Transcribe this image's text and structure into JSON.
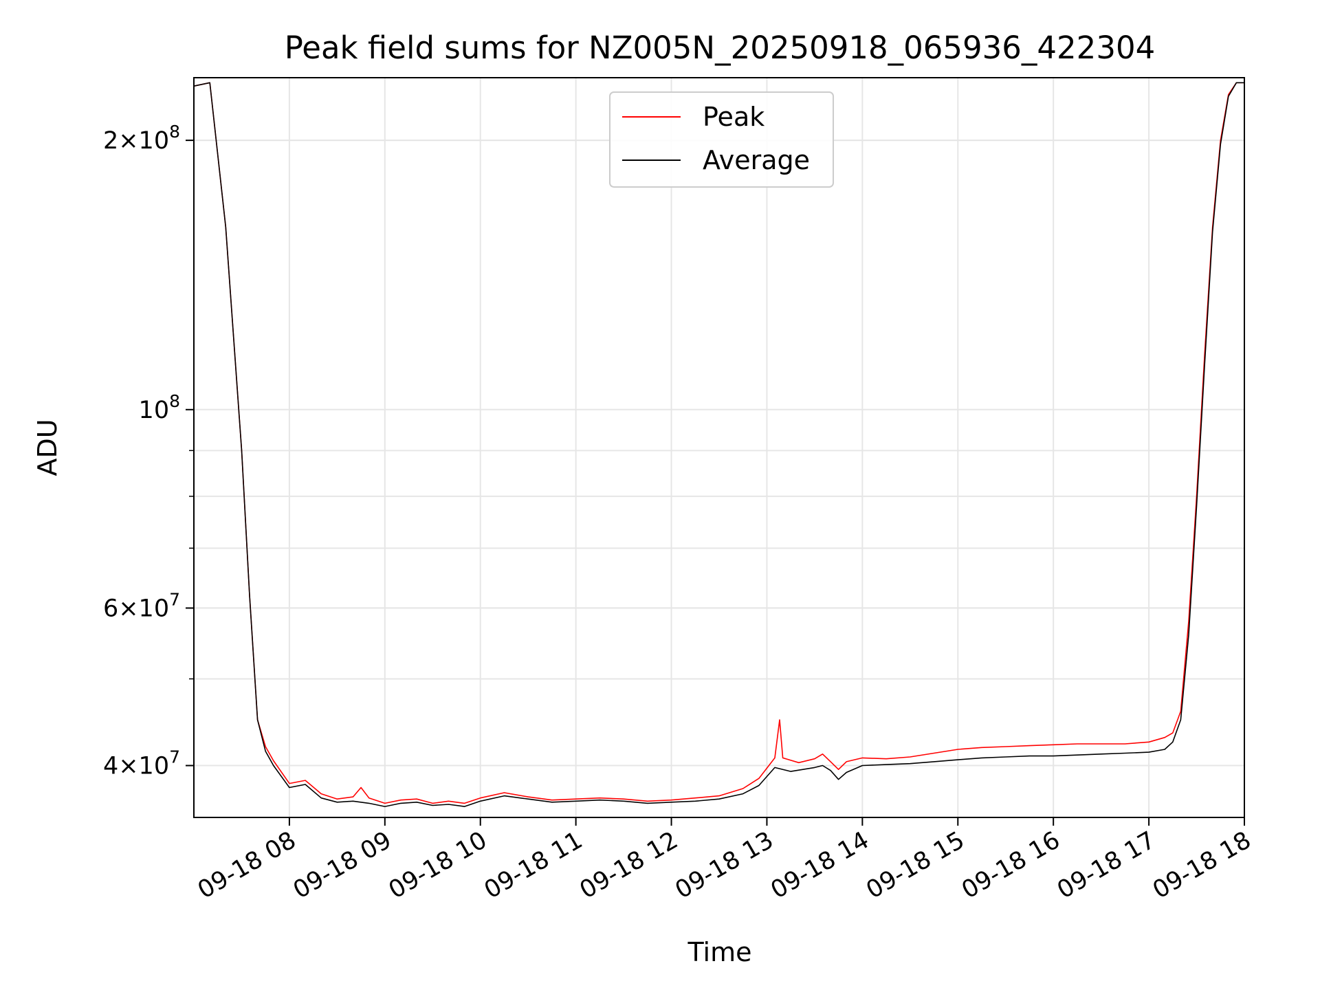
{
  "chart_data": {
    "type": "line",
    "title": "Peak field sums for NZ005N_20250918_065936_422304",
    "xlabel": "Time",
    "ylabel": "ADU",
    "y_scale": "log",
    "ylim": [
      35000000,
      235000000
    ],
    "xlim": [
      "2025-09-18 07:00",
      "2025-09-18 18:00"
    ],
    "grid": true,
    "legend_placement": "top-center",
    "x_tick_labels": [
      "09-18 08",
      "09-18 09",
      "09-18 10",
      "09-18 11",
      "09-18 12",
      "09-18 13",
      "09-18 14",
      "09-18 15",
      "09-18 16",
      "09-18 17",
      "09-18 18"
    ],
    "x_ticks": [
      "2025-09-18 08:00",
      "2025-09-18 09:00",
      "2025-09-18 10:00",
      "2025-09-18 11:00",
      "2025-09-18 12:00",
      "2025-09-18 13:00",
      "2025-09-18 14:00",
      "2025-09-18 15:00",
      "2025-09-18 16:00",
      "2025-09-18 17:00",
      "2025-09-18 18:00"
    ],
    "y_ticks": [
      {
        "value": 200000000,
        "mantissa": "2",
        "exponent": "8"
      },
      {
        "value": 100000000,
        "mantissa": "",
        "exponent": "8"
      },
      {
        "value": 60000000,
        "mantissa": "6",
        "exponent": "7"
      },
      {
        "value": 40000000,
        "mantissa": "4",
        "exponent": "7"
      }
    ],
    "series": [
      {
        "name": "Peak",
        "color": "#ff0000",
        "x": [
          "07:00",
          "07:10",
          "07:20",
          "07:30",
          "07:35",
          "07:40",
          "07:45",
          "07:50",
          "08:00",
          "08:10",
          "08:20",
          "08:30",
          "08:40",
          "08:45",
          "08:50",
          "09:00",
          "09:10",
          "09:20",
          "09:30",
          "09:40",
          "09:50",
          "10:00",
          "10:15",
          "10:30",
          "10:45",
          "11:00",
          "11:15",
          "11:30",
          "11:45",
          "12:00",
          "12:15",
          "12:30",
          "12:45",
          "12:55",
          "13:05",
          "13:08",
          "13:10",
          "13:20",
          "13:30",
          "13:35",
          "13:40",
          "13:45",
          "13:50",
          "14:00",
          "14:15",
          "14:30",
          "14:45",
          "15:00",
          "15:15",
          "15:30",
          "15:45",
          "16:00",
          "16:15",
          "16:30",
          "16:45",
          "17:00",
          "17:10",
          "17:15",
          "17:20",
          "17:25",
          "17:30",
          "17:35",
          "17:40",
          "17:45",
          "17:50",
          "17:55",
          "18:00"
        ],
        "y": [
          230000000,
          232000000,
          160000000,
          90000000,
          62000000,
          45000000,
          42000000,
          40500000,
          38200000,
          38500000,
          37200000,
          36700000,
          36900000,
          37800000,
          36800000,
          36300000,
          36600000,
          36700000,
          36300000,
          36500000,
          36300000,
          36800000,
          37300000,
          36900000,
          36600000,
          36700000,
          36800000,
          36700000,
          36500000,
          36600000,
          36800000,
          37000000,
          37700000,
          38700000,
          40800000,
          45000000,
          40800000,
          40300000,
          40700000,
          41200000,
          40400000,
          39600000,
          40400000,
          40800000,
          40700000,
          40900000,
          41300000,
          41700000,
          41900000,
          42000000,
          42100000,
          42200000,
          42300000,
          42300000,
          42300000,
          42500000,
          43000000,
          43500000,
          46000000,
          58000000,
          80000000,
          115000000,
          160000000,
          200000000,
          225000000,
          232000000,
          232000000
        ]
      },
      {
        "name": "Average",
        "color": "#000000",
        "x": [
          "07:00",
          "07:10",
          "07:20",
          "07:30",
          "07:35",
          "07:40",
          "07:45",
          "07:50",
          "08:00",
          "08:10",
          "08:20",
          "08:30",
          "08:40",
          "08:50",
          "09:00",
          "09:10",
          "09:20",
          "09:30",
          "09:40",
          "09:50",
          "10:00",
          "10:15",
          "10:30",
          "10:45",
          "11:00",
          "11:15",
          "11:30",
          "11:45",
          "12:00",
          "12:15",
          "12:30",
          "12:45",
          "12:55",
          "13:05",
          "13:15",
          "13:30",
          "13:35",
          "13:40",
          "13:45",
          "13:50",
          "14:00",
          "14:15",
          "14:30",
          "14:45",
          "15:00",
          "15:15",
          "15:30",
          "15:45",
          "16:00",
          "16:15",
          "16:30",
          "16:45",
          "17:00",
          "17:10",
          "17:15",
          "17:20",
          "17:25",
          "17:30",
          "17:35",
          "17:40",
          "17:45",
          "17:50",
          "17:55",
          "18:00"
        ],
        "y": [
          230000000,
          232000000,
          160000000,
          90000000,
          62000000,
          45000000,
          41500000,
          40000000,
          37800000,
          38100000,
          36800000,
          36400000,
          36500000,
          36300000,
          36000000,
          36300000,
          36400000,
          36100000,
          36200000,
          36000000,
          36500000,
          37000000,
          36700000,
          36400000,
          36500000,
          36600000,
          36500000,
          36300000,
          36400000,
          36500000,
          36700000,
          37200000,
          38000000,
          39800000,
          39400000,
          39800000,
          40000000,
          39500000,
          38600000,
          39300000,
          40000000,
          40100000,
          40200000,
          40400000,
          40600000,
          40800000,
          40900000,
          41000000,
          41000000,
          41100000,
          41200000,
          41300000,
          41400000,
          41700000,
          42500000,
          45000000,
          56000000,
          78000000,
          112000000,
          158000000,
          198000000,
          224000000,
          232000000,
          232000000
        ]
      }
    ]
  }
}
